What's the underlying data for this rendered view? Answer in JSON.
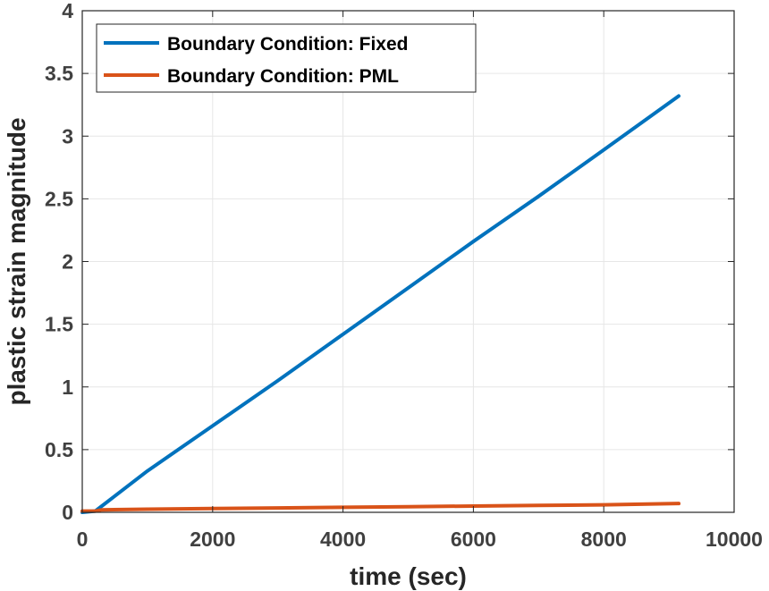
{
  "chart_data": {
    "type": "line",
    "xlabel": "time (sec)",
    "ylabel": "plastic strain magnitude",
    "xlim": [
      0,
      10000
    ],
    "ylim": [
      0,
      4
    ],
    "xticks": [
      0,
      2000,
      4000,
      6000,
      8000,
      10000
    ],
    "xtick_labels": [
      "0",
      "2000",
      "4000",
      "6000",
      "8000",
      "10000"
    ],
    "yticks": [
      0,
      0.5,
      1,
      1.5,
      2,
      2.5,
      3,
      3.5,
      4
    ],
    "ytick_labels": [
      "0",
      "0.5",
      "1",
      "1.5",
      "2",
      "2.5",
      "3",
      "3.5",
      "4"
    ],
    "grid": true,
    "legend_position": "top-left",
    "series": [
      {
        "name": "Boundary Condition: Fixed",
        "color": "#0072BD",
        "x": [
          0,
          200,
          300,
          1000,
          2000,
          3000,
          4000,
          5000,
          6000,
          7000,
          8000,
          9150
        ],
        "y": [
          0,
          0.01,
          0.05,
          0.33,
          0.69,
          1.05,
          1.42,
          1.79,
          2.16,
          2.52,
          2.89,
          3.32
        ]
      },
      {
        "name": "Boundary Condition: PML",
        "color": "#D95319",
        "x": [
          0,
          200,
          300,
          1000,
          2000,
          3000,
          4000,
          5000,
          6000,
          7000,
          8000,
          9150
        ],
        "y": [
          0.01,
          0.01,
          0.02,
          0.025,
          0.03,
          0.035,
          0.04,
          0.045,
          0.05,
          0.055,
          0.06,
          0.07
        ]
      }
    ]
  }
}
